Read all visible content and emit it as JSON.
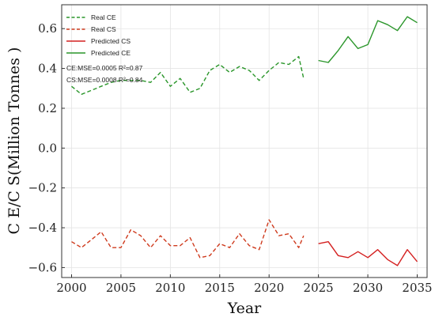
{
  "chart_data": {
    "type": "line",
    "xlabel": "Year",
    "ylabel": "C E/C S(Million Tonnes )",
    "xlim": [
      1999,
      2036
    ],
    "ylim": [
      -0.65,
      0.72
    ],
    "xticks": [
      2000,
      2005,
      2010,
      2015,
      2020,
      2025,
      2030,
      2035
    ],
    "xtick_labels": [
      "2000",
      "2005",
      "2010",
      "2015",
      "2020",
      "2025",
      "2030",
      "2035"
    ],
    "yticks": [
      -0.6,
      -0.4,
      -0.2,
      0.0,
      0.2,
      0.4,
      0.6
    ],
    "ytick_labels": [
      "−0.6",
      "−0.4",
      "−0.2",
      "0.0",
      "0.2",
      "0.4",
      "0.6"
    ],
    "grid": true,
    "legend_position": "top-left",
    "series": [
      {
        "name": "Real CE",
        "color": "#2a962a",
        "style": "dashed",
        "x": [
          2000,
          2001,
          2002,
          2003,
          2004,
          2005,
          2006,
          2007,
          2008,
          2009,
          2010,
          2011,
          2012,
          2013,
          2014,
          2015,
          2016,
          2017,
          2018,
          2019,
          2020,
          2021,
          2022,
          2023,
          2023.5
        ],
        "y": [
          0.31,
          0.27,
          0.29,
          0.31,
          0.33,
          0.34,
          0.34,
          0.34,
          0.33,
          0.38,
          0.31,
          0.35,
          0.28,
          0.3,
          0.39,
          0.42,
          0.38,
          0.41,
          0.39,
          0.34,
          0.39,
          0.43,
          0.42,
          0.46,
          0.35
        ]
      },
      {
        "name": "Real CS",
        "color": "#cf3b1e",
        "style": "dashed",
        "x": [
          2000,
          2001,
          2002,
          2003,
          2004,
          2005,
          2006,
          2007,
          2008,
          2009,
          2010,
          2011,
          2012,
          2013,
          2014,
          2015,
          2016,
          2017,
          2018,
          2019,
          2020,
          2021,
          2022,
          2023,
          2023.5
        ],
        "y": [
          -0.47,
          -0.5,
          -0.46,
          -0.42,
          -0.5,
          -0.5,
          -0.41,
          -0.44,
          -0.5,
          -0.44,
          -0.49,
          -0.49,
          -0.45,
          -0.55,
          -0.54,
          -0.48,
          -0.5,
          -0.43,
          -0.49,
          -0.51,
          -0.36,
          -0.44,
          -0.43,
          -0.5,
          -0.44
        ]
      },
      {
        "name": "Predicted CS",
        "color": "#d42020",
        "style": "solid",
        "x": [
          2025,
          2026,
          2027,
          2028,
          2029,
          2030,
          2031,
          2032,
          2033,
          2034,
          2035
        ],
        "y": [
          -0.48,
          -0.47,
          -0.54,
          -0.55,
          -0.52,
          -0.55,
          -0.51,
          -0.56,
          -0.59,
          -0.51,
          -0.57
        ]
      },
      {
        "name": "Predicted CE",
        "color": "#2a962a",
        "style": "solid",
        "x": [
          2025,
          2026,
          2027,
          2028,
          2029,
          2030,
          2031,
          2032,
          2033,
          2034,
          2035
        ],
        "y": [
          0.44,
          0.43,
          0.49,
          0.56,
          0.5,
          0.52,
          0.64,
          0.62,
          0.59,
          0.66,
          0.63
        ]
      }
    ],
    "annotations": [
      "CE:MSE=0.0005 R²=0.87",
      "CS:MSE=0.0008 R²=0.84"
    ]
  }
}
